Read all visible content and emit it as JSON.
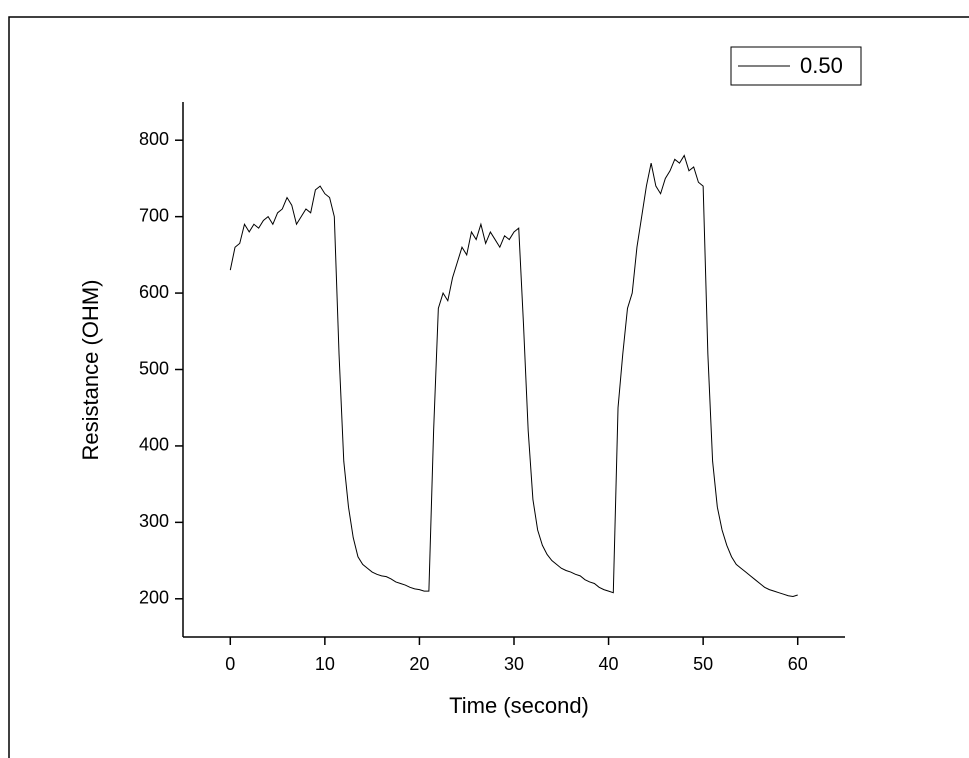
{
  "chart_data": {
    "type": "line",
    "xlabel": "Time (second)",
    "ylabel": "Resistance (OHM)",
    "xlim": [
      -5,
      65
    ],
    "xticks": [
      0,
      10,
      20,
      30,
      40,
      50,
      60
    ],
    "ylim": [
      150,
      850
    ],
    "yticks": [
      200,
      300,
      400,
      500,
      600,
      700,
      800
    ],
    "legend": "upper right",
    "x": [
      0,
      0.5,
      1,
      1.5,
      2,
      2.5,
      3,
      3.5,
      4,
      4.5,
      5,
      5.5,
      6,
      6.5,
      7,
      7.5,
      8,
      8.5,
      9,
      9.5,
      10,
      10.5,
      11,
      11.5,
      12,
      12.5,
      13,
      13.5,
      14,
      14.5,
      15,
      15.5,
      16,
      16.5,
      17,
      17.5,
      18,
      18.5,
      19,
      19.5,
      20,
      20.5,
      21,
      21.5,
      22,
      22.5,
      23,
      23.5,
      24,
      24.5,
      25,
      25.5,
      26,
      26.5,
      27,
      27.5,
      28,
      28.5,
      29,
      29.5,
      30,
      30.5,
      31,
      31.5,
      32,
      32.5,
      33,
      33.5,
      34,
      34.5,
      35,
      35.5,
      36,
      36.5,
      37,
      37.5,
      38,
      38.5,
      39,
      39.5,
      40,
      40.5,
      41,
      41.5,
      42,
      42.5,
      43,
      43.5,
      44,
      44.5,
      45,
      45.5,
      46,
      46.5,
      47,
      47.5,
      48,
      48.5,
      49,
      49.5,
      50,
      50.5,
      51,
      51.5,
      52,
      52.5,
      53,
      53.5,
      54,
      54.5,
      55,
      55.5,
      56,
      56.5,
      57,
      57.5,
      58,
      58.5,
      59,
      59.5,
      60
    ],
    "series": [
      {
        "name": "0.50",
        "color": "#000000",
        "values": [
          630,
          660,
          665,
          690,
          680,
          690,
          685,
          695,
          700,
          690,
          705,
          710,
          725,
          715,
          690,
          700,
          710,
          705,
          735,
          740,
          730,
          725,
          700,
          520,
          380,
          320,
          280,
          255,
          245,
          240,
          235,
          232,
          230,
          229,
          226,
          222,
          220,
          218,
          215,
          213,
          212,
          210,
          210,
          420,
          580,
          600,
          590,
          620,
          640,
          660,
          650,
          680,
          670,
          690,
          665,
          680,
          670,
          660,
          675,
          670,
          680,
          685,
          560,
          420,
          330,
          290,
          270,
          258,
          250,
          245,
          240,
          237,
          235,
          232,
          230,
          225,
          222,
          220,
          215,
          212,
          210,
          208,
          450,
          520,
          580,
          600,
          660,
          700,
          740,
          770,
          740,
          730,
          750,
          760,
          775,
          770,
          780,
          760,
          765,
          745,
          740,
          520,
          380,
          320,
          290,
          270,
          255,
          245,
          240,
          235,
          230,
          225,
          220,
          215,
          212,
          210,
          208,
          206,
          204,
          203,
          205
        ]
      }
    ]
  }
}
